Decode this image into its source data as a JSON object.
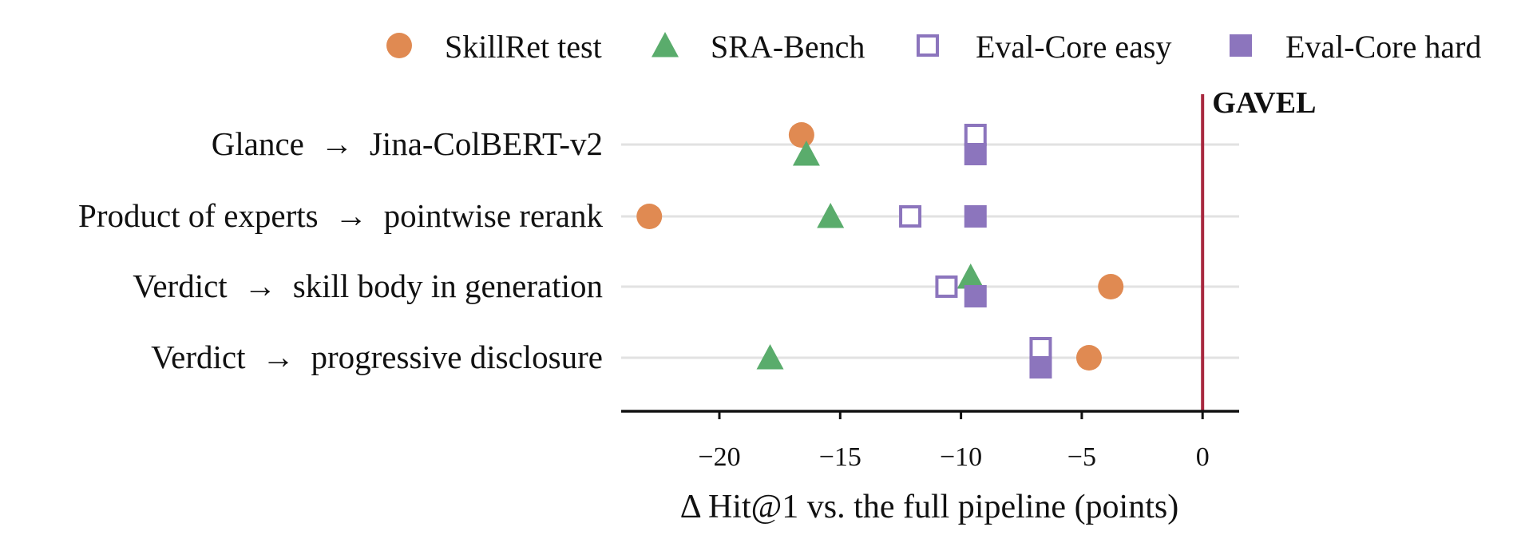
{
  "chart_data": {
    "type": "scatter",
    "xlabel": "Δ Hit@1 vs. the full pipeline (points)",
    "ylabel": "",
    "xlim": [
      -24.2,
      1.3
    ],
    "xticks": [
      -20,
      -15,
      -10,
      -5,
      0
    ],
    "xtick_labels": [
      "−20",
      "−15",
      "−10",
      "−5",
      "0"
    ],
    "grid": "horizontal",
    "legend_position": "top",
    "categories": [
      "Glance  →  Jina-ColBERT-v2",
      "Product of experts  →  pointwise rerank",
      "Verdict  →  skill body in generation",
      "Verdict  →  progressive disclosure"
    ],
    "series": [
      {
        "name": "SkillRet test",
        "marker": "circle",
        "color": "#e08a52",
        "values": [
          -16.6,
          -22.9,
          -3.8,
          -4.7
        ]
      },
      {
        "name": "SRA-Bench",
        "marker": "triangle",
        "color": "#5aac6c",
        "values": [
          -16.4,
          -15.4,
          -9.6,
          -17.9
        ]
      },
      {
        "name": "Eval-Core easy",
        "marker": "square-open",
        "color": "#8c75bd",
        "values": [
          -9.4,
          -12.1,
          -10.6,
          -6.7
        ]
      },
      {
        "name": "Eval-Core hard",
        "marker": "square-filled",
        "color": "#8c75bd",
        "values": [
          -9.4,
          -9.4,
          -9.4,
          -6.7
        ]
      }
    ],
    "reference_line": {
      "x": 0,
      "label": "GAVEL",
      "color": "#a8283f"
    }
  }
}
